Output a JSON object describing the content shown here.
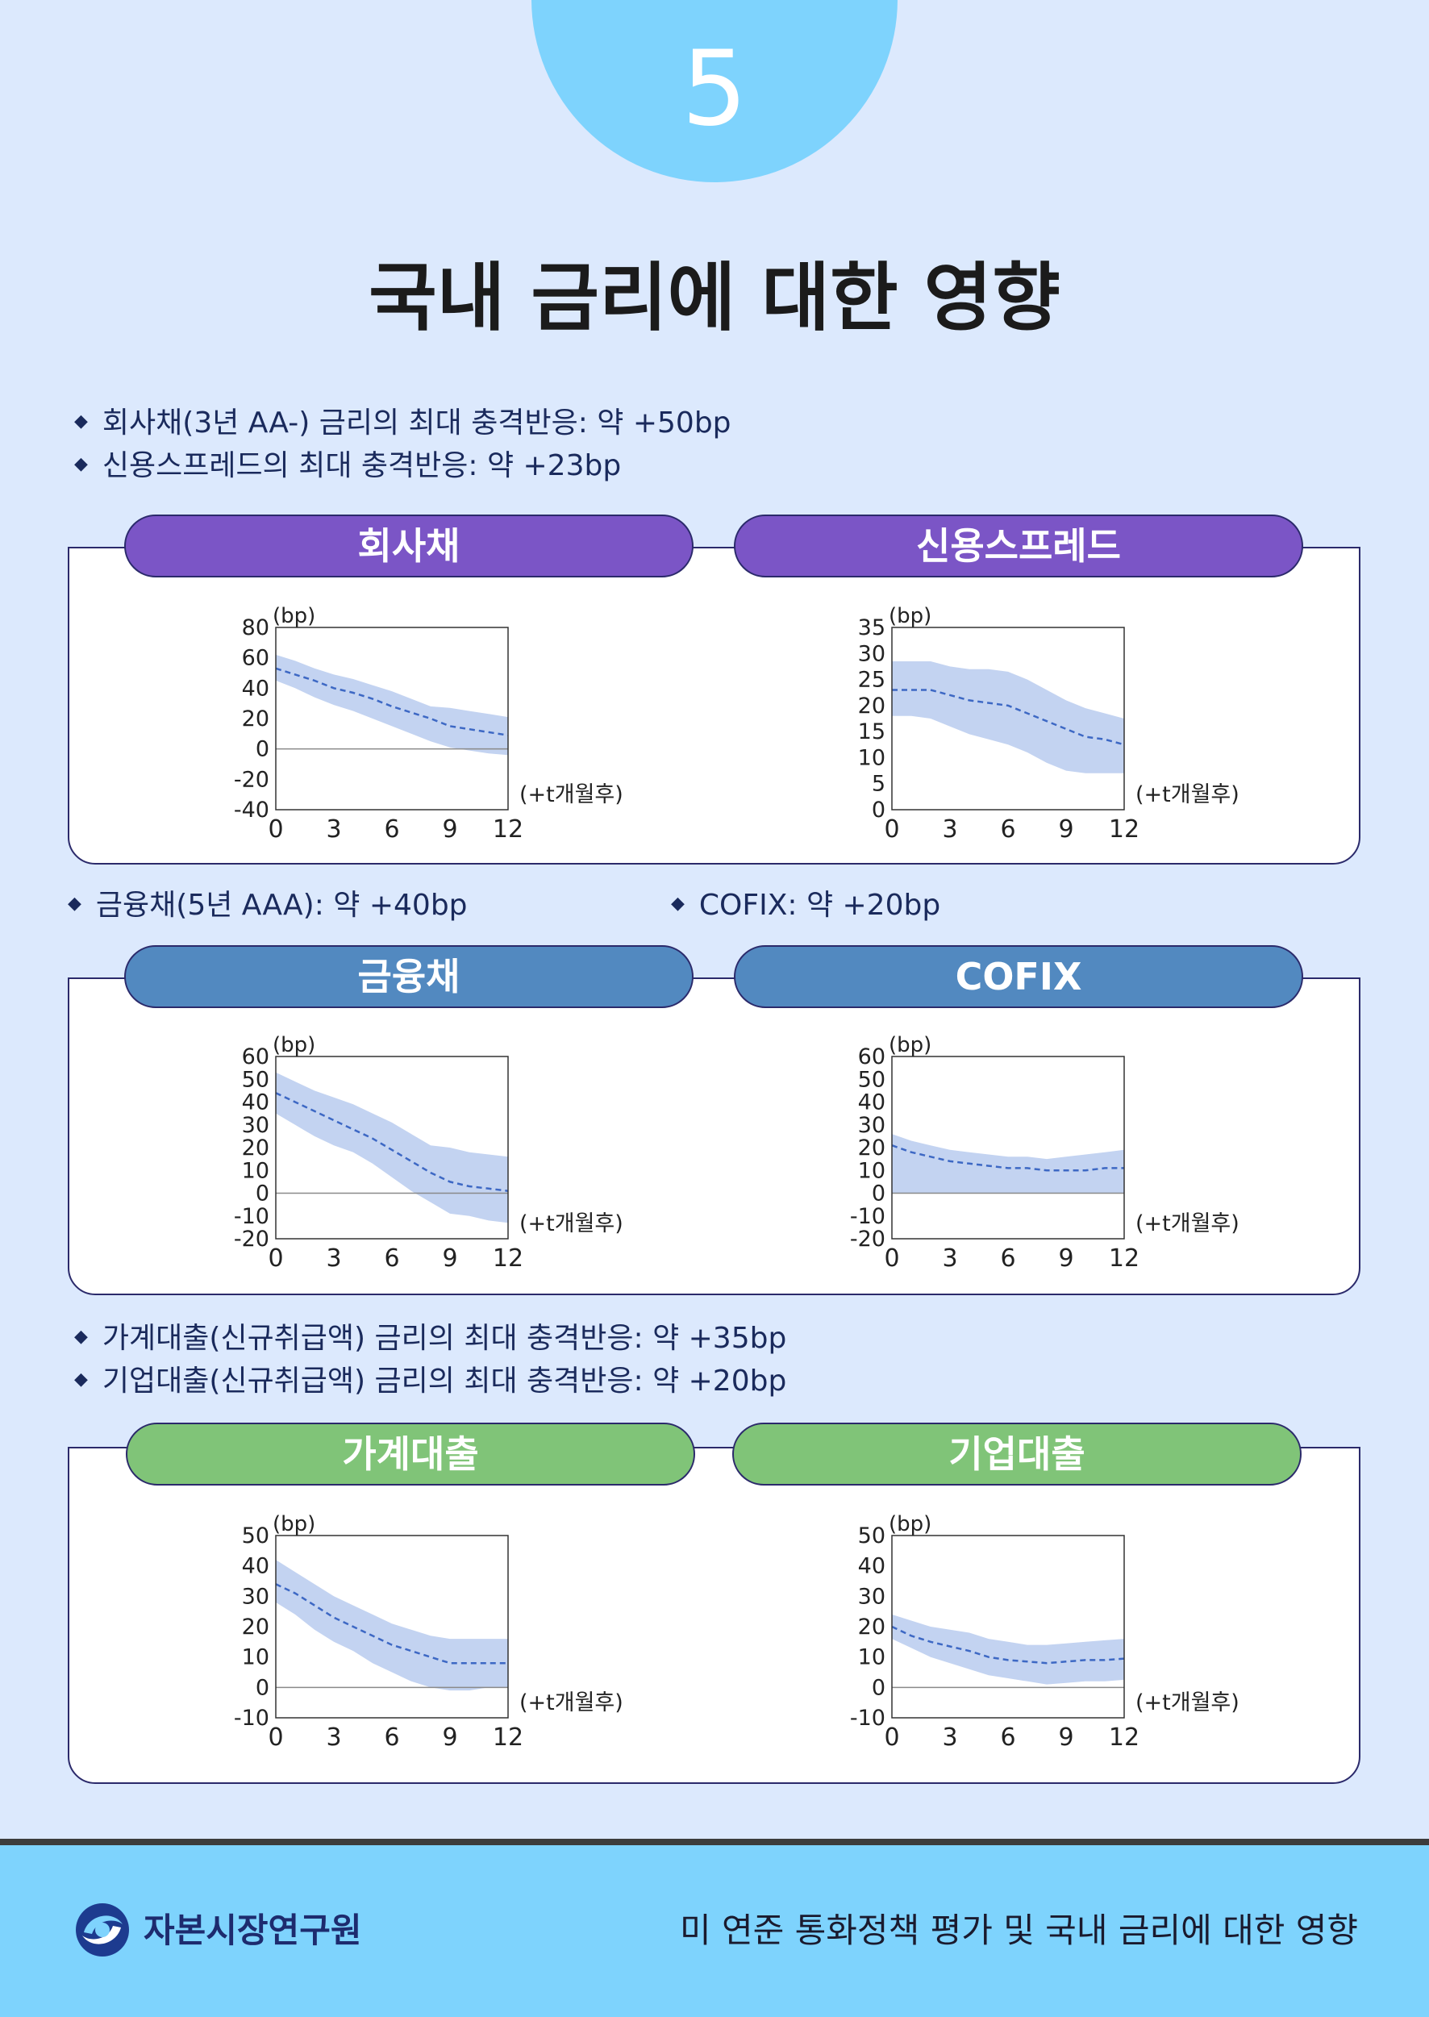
{
  "page": {
    "number": "5",
    "title": "국내 금리에 대한 영향"
  },
  "sections": [
    {
      "bullets": [
        "회사채(3년 AA-) 금리의 최대 충격반응: 약 +50bp",
        "신용스프레드의 최대 충격반응: 약 +23bp"
      ]
    },
    {
      "bullets": [
        "금융채(5년 AAA): 약 +40bp",
        "COFIX: 약 +20bp"
      ]
    },
    {
      "bullets": [
        "가계대출(신규취급액) 금리의 최대 충격반응: 약 +35bp",
        "기업대출(신규취급액) 금리의 최대 충격반응: 약 +20bp"
      ]
    }
  ],
  "panels": [
    {
      "labels": [
        "회사채",
        "신용스프레드"
      ],
      "color": "#7b55c6"
    },
    {
      "labels": [
        "금융채",
        "COFIX"
      ],
      "color": "#5289c0"
    },
    {
      "labels": [
        "가계대출",
        "기업대출"
      ],
      "color": "#80c478"
    }
  ],
  "chart_data": [
    {
      "type": "area",
      "title": "회사채",
      "unit": "(bp)",
      "xlabel": "(+t개월후)",
      "x": [
        0,
        1,
        2,
        3,
        4,
        5,
        6,
        7,
        8,
        9,
        10,
        11,
        12
      ],
      "xticks": [
        0,
        3,
        6,
        9,
        12
      ],
      "ylim": [
        -40,
        80
      ],
      "yticks": [
        80,
        60,
        40,
        20,
        0,
        -20,
        -40
      ],
      "median": [
        53,
        49,
        45,
        40,
        37,
        33,
        28,
        24,
        20,
        15,
        13,
        11,
        9
      ],
      "upper": [
        62,
        58,
        53,
        49,
        46,
        42,
        38,
        33,
        28,
        27,
        25,
        23,
        21
      ],
      "lower": [
        45,
        40,
        34,
        29,
        25,
        20,
        15,
        10,
        5,
        1,
        -1,
        -3,
        -4
      ]
    },
    {
      "type": "area",
      "title": "신용스프레드",
      "unit": "(bp)",
      "xlabel": "(+t개월후)",
      "x": [
        0,
        1,
        2,
        3,
        4,
        5,
        6,
        7,
        8,
        9,
        10,
        11,
        12
      ],
      "xticks": [
        0,
        3,
        6,
        9,
        12
      ],
      "ylim": [
        0,
        35
      ],
      "yticks": [
        35,
        30,
        25,
        20,
        15,
        10,
        5,
        0
      ],
      "median": [
        23,
        23,
        23,
        22,
        21,
        20.5,
        20,
        18.5,
        17,
        15.5,
        14,
        13.5,
        12.5
      ],
      "upper": [
        28.5,
        28.5,
        28.5,
        27.5,
        27,
        27,
        26.5,
        25,
        23,
        21,
        19.5,
        18.5,
        17.5
      ],
      "lower": [
        18,
        18,
        17.5,
        16,
        14.5,
        13.5,
        12.5,
        11,
        9,
        7.5,
        7,
        7,
        7
      ]
    },
    {
      "type": "area",
      "title": "금융채",
      "unit": "(bp)",
      "xlabel": "(+t개월후)",
      "x": [
        0,
        1,
        2,
        3,
        4,
        5,
        6,
        7,
        8,
        9,
        10,
        11,
        12
      ],
      "xticks": [
        0,
        3,
        6,
        9,
        12
      ],
      "ylim": [
        -20,
        60
      ],
      "yticks": [
        60,
        50,
        40,
        30,
        20,
        10,
        0,
        -10,
        -20
      ],
      "median": [
        44,
        40,
        36,
        32,
        28,
        24,
        19,
        14,
        9,
        5,
        3,
        2,
        1
      ],
      "upper": [
        53,
        49,
        45,
        42,
        39,
        35,
        31,
        26,
        21,
        20,
        18,
        17,
        16
      ],
      "lower": [
        35,
        30,
        25,
        21,
        18,
        13,
        7,
        1,
        -4,
        -9,
        -10,
        -12,
        -13
      ]
    },
    {
      "type": "area",
      "title": "COFIX",
      "unit": "(bp)",
      "xlabel": "(+t개월후)",
      "x": [
        0,
        1,
        2,
        3,
        4,
        5,
        6,
        7,
        8,
        9,
        10,
        11,
        12
      ],
      "xticks": [
        0,
        3,
        6,
        9,
        12
      ],
      "ylim": [
        -20,
        60
      ],
      "yticks": [
        60,
        50,
        40,
        30,
        20,
        10,
        0,
        -10,
        -20
      ],
      "median": [
        21,
        18,
        16,
        14,
        13,
        12,
        11,
        11,
        10,
        10,
        10,
        11,
        11
      ],
      "upper": [
        26,
        23,
        21,
        19,
        18,
        17,
        16,
        16,
        15,
        16,
        17,
        18,
        19
      ],
      "lower": [
        0,
        0,
        0,
        0,
        0,
        0,
        0,
        0,
        0,
        0,
        0,
        0,
        0
      ]
    },
    {
      "type": "area",
      "title": "가계대출",
      "unit": "(bp)",
      "xlabel": "(+t개월후)",
      "x": [
        0,
        1,
        2,
        3,
        4,
        5,
        6,
        7,
        8,
        9,
        10,
        11,
        12
      ],
      "xticks": [
        0,
        3,
        6,
        9,
        12
      ],
      "ylim": [
        -10,
        50
      ],
      "yticks": [
        50,
        40,
        30,
        20,
        10,
        0,
        -10
      ],
      "median": [
        34,
        31,
        27,
        23,
        20,
        17,
        14,
        12,
        10,
        8,
        8,
        8,
        8
      ],
      "upper": [
        42,
        38,
        34,
        30,
        27,
        24,
        21,
        19,
        17,
        16,
        16,
        16,
        16
      ],
      "lower": [
        28,
        24,
        19,
        15,
        12,
        8,
        5,
        2,
        0,
        -1,
        -1,
        0,
        0
      ]
    },
    {
      "type": "area",
      "title": "기업대출",
      "unit": "(bp)",
      "xlabel": "(+t개월후)",
      "x": [
        0,
        1,
        2,
        3,
        4,
        5,
        6,
        7,
        8,
        9,
        10,
        11,
        12
      ],
      "xticks": [
        0,
        3,
        6,
        9,
        12
      ],
      "ylim": [
        -10,
        50
      ],
      "yticks": [
        50,
        40,
        30,
        20,
        10,
        0,
        -10
      ],
      "median": [
        20,
        17,
        15,
        13.5,
        12,
        10,
        9,
        8.5,
        8,
        8.5,
        9,
        9,
        9.5
      ],
      "upper": [
        24,
        22,
        20,
        19,
        18,
        16,
        15,
        14,
        14,
        14.5,
        15,
        15.5,
        16
      ],
      "lower": [
        16,
        13,
        10,
        8,
        6,
        4,
        3,
        2,
        1,
        1.5,
        2,
        2,
        2.5
      ]
    }
  ],
  "footer": {
    "logo_text": "자본시장연구원",
    "right_text": "미 연준 통화정책 평가 및 국내 금리에 대한 영향"
  }
}
